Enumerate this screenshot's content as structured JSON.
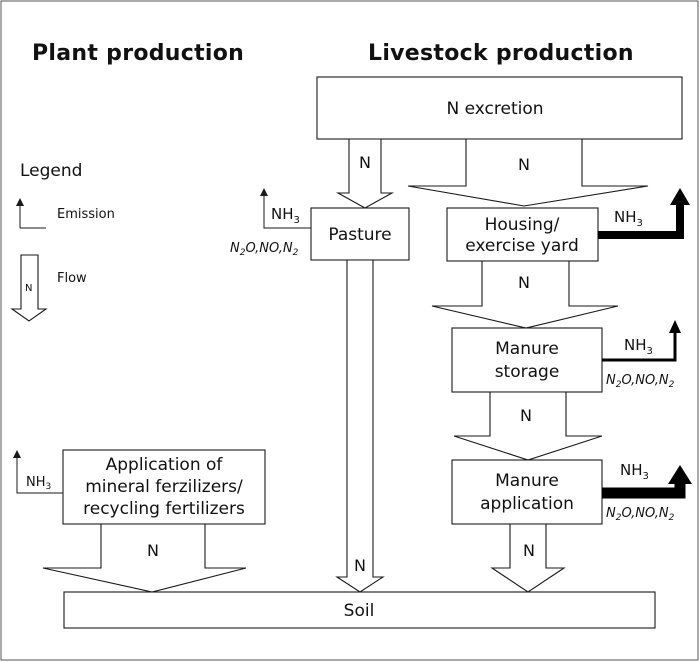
{
  "headings": {
    "plant": "Plant production",
    "livestock": "Livestock production"
  },
  "legend": {
    "title": "Legend",
    "emission": "Emission",
    "flow": "Flow",
    "flow_symbol": "N"
  },
  "boxes": {
    "excretion": "N excretion",
    "pasture": "Pasture",
    "housing_l1": "Housing/",
    "housing_l2": "exercise yard",
    "storage_l1": "Manure",
    "storage_l2": "storage",
    "manure_app_l1": "Manure",
    "manure_app_l2": "application",
    "mineral_l1": "Application of",
    "mineral_l2": "mineral ferzilizers/",
    "mineral_l3": "recycling fertilizers",
    "soil": "Soil"
  },
  "flow_label": "N",
  "emissions": {
    "ammonia_base": "NH",
    "ammonia_sub": "3",
    "n2o_n": "N",
    "n2o_sub": "2",
    "n2o_rest": "O,NO,N",
    "n2_sub": "2"
  },
  "colors": {
    "line": "#1a1a1a",
    "background": "#ffffff"
  }
}
